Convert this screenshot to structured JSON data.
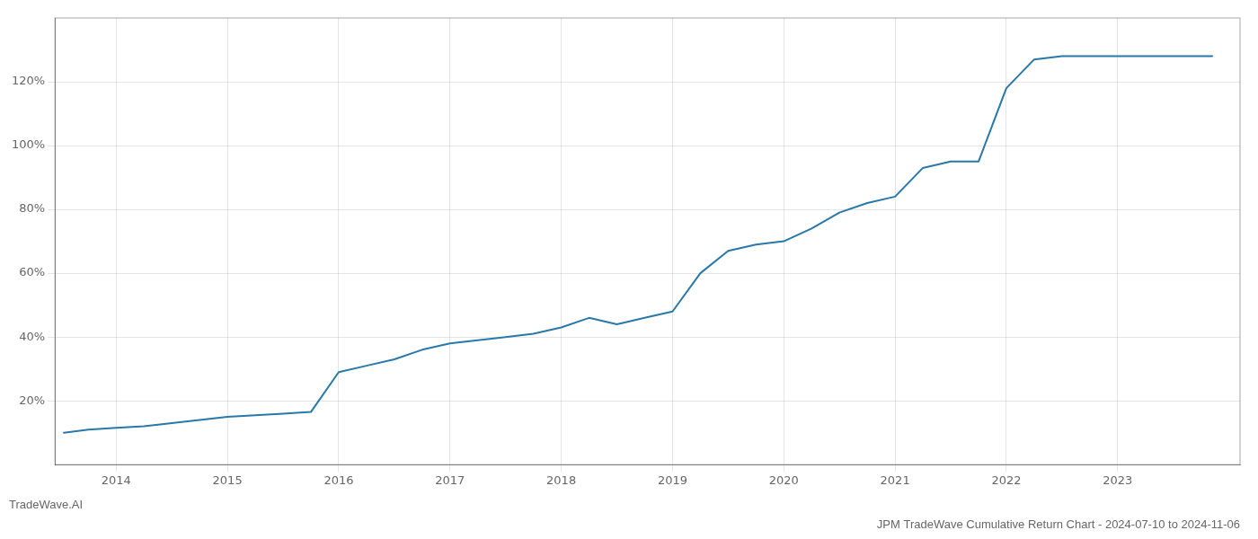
{
  "chart_data": {
    "type": "line",
    "title": "JPM TradeWave Cumulative Return Chart - 2024-07-10 to 2024-11-06",
    "annotations": [
      "TradeWave.AI"
    ],
    "color": "#2878a8",
    "x": [
      2013.53,
      2013.75,
      2014.0,
      2014.25,
      2014.5,
      2014.75,
      2015.0,
      2015.25,
      2015.5,
      2015.75,
      2016.0,
      2016.25,
      2016.5,
      2016.75,
      2017.0,
      2017.25,
      2017.5,
      2017.75,
      2018.0,
      2018.25,
      2018.5,
      2018.75,
      2019.0,
      2019.25,
      2019.5,
      2019.75,
      2020.0,
      2020.25,
      2020.5,
      2020.75,
      2021.0,
      2021.25,
      2021.5,
      2021.75,
      2022.0,
      2022.25,
      2022.5,
      2022.75,
      2023.0,
      2023.5,
      2023.85
    ],
    "values": [
      10,
      11,
      11.5,
      12,
      13,
      14,
      15,
      15.5,
      16,
      16.5,
      29,
      31,
      33,
      36,
      38,
      39,
      40,
      41,
      43,
      46,
      44,
      46,
      48,
      60,
      67,
      69,
      70,
      74,
      79,
      82,
      84,
      93,
      95,
      95,
      118,
      127,
      128,
      128,
      128,
      128,
      128
    ],
    "xlim": [
      2013.45,
      2024.1
    ],
    "xticks": [
      2014,
      2015,
      2016,
      2017,
      2018,
      2019,
      2020,
      2021,
      2022,
      2023
    ],
    "ylim": [
      0,
      140
    ],
    "yticks": [
      {
        "value": 20,
        "label": "20%"
      },
      {
        "value": 40,
        "label": "40%"
      },
      {
        "value": 60,
        "label": "60%"
      },
      {
        "value": 80,
        "label": "80%"
      },
      {
        "value": 100,
        "label": "100%"
      },
      {
        "value": 120,
        "label": "120%"
      }
    ],
    "grid": true
  }
}
